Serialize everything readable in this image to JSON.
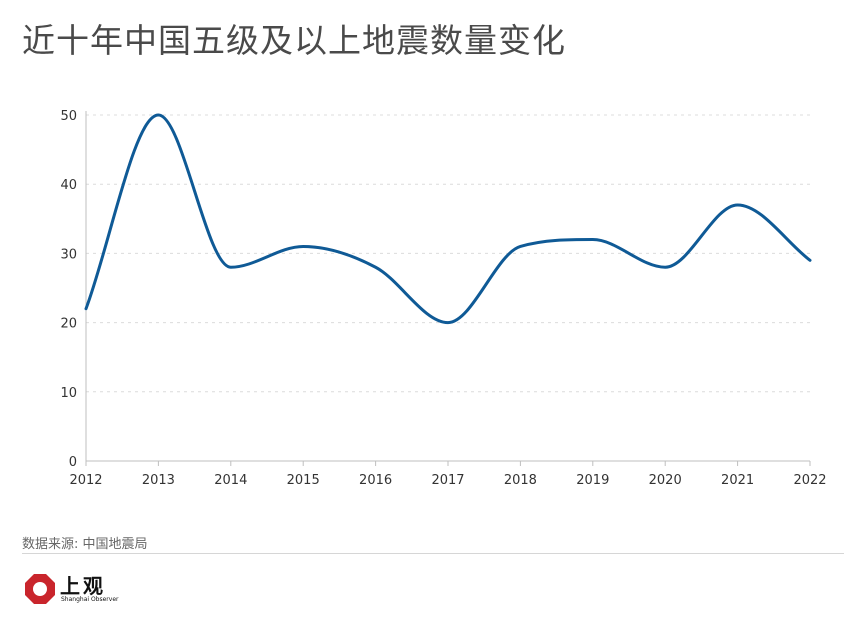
{
  "title": "近十年中国五级及以上地震数量变化",
  "source": "数据来源: 中国地震局",
  "logo": {
    "name": "上观",
    "subtitle": "Shanghai Observer",
    "color": "#c9252c"
  },
  "chart_data": {
    "type": "line",
    "title": "近十年中国五级及以上地震数量变化",
    "xlabel": "",
    "ylabel": "",
    "x": [
      2012,
      2013,
      2014,
      2015,
      2016,
      2017,
      2018,
      2019,
      2020,
      2021,
      2022
    ],
    "x_tick_labels": [
      "2012",
      "2013",
      "2014",
      "2015",
      "2016",
      "2017",
      "2018",
      "2019",
      "2020",
      "2021",
      "2022"
    ],
    "y_ticks": [
      0,
      10,
      20,
      30,
      40,
      50
    ],
    "ylim": [
      0,
      50
    ],
    "xlim": [
      2012,
      2022
    ],
    "grid": true,
    "smooth": true,
    "line_color": "#0f5a96",
    "series": [
      {
        "values": [
          22,
          50,
          28,
          31,
          28,
          20,
          31,
          32,
          28,
          37,
          29
        ]
      }
    ]
  }
}
